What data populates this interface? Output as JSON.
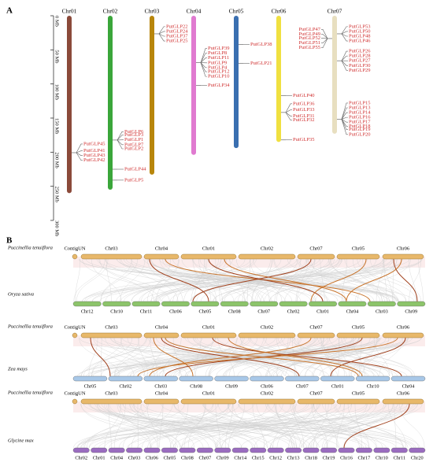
{
  "panel_a": {
    "label": "A",
    "axis_ticks": [
      {
        "value": 0,
        "label": "0 Mb"
      },
      {
        "value": 50,
        "label": "50 Mb"
      },
      {
        "value": 100,
        "label": "100 Mb"
      },
      {
        "value": 150,
        "label": "150 Mb"
      },
      {
        "value": 200,
        "label": "200 Mb"
      },
      {
        "value": 250,
        "label": "250 Mb"
      },
      {
        "value": 300,
        "label": "300 Mb"
      }
    ],
    "axis_range": [
      0,
      300
    ],
    "chromosomes": [
      {
        "name": "Chr01",
        "length": 260,
        "color": "#8b4a3a",
        "genes": [
          {
            "name": "PutGLP45",
            "pos": 188
          },
          {
            "name": "PutGLP41",
            "pos": 198
          },
          {
            "name": "PutGLP43",
            "pos": 205
          },
          {
            "name": "PutGLP42",
            "pos": 212
          }
        ]
      },
      {
        "name": "Chr02",
        "length": 255,
        "color": "#3aa63a",
        "genes": [
          {
            "name": "PutGLP6",
            "pos": 170
          },
          {
            "name": "PutGLP3",
            "pos": 175
          },
          {
            "name": "PutGLP1",
            "pos": 182
          },
          {
            "name": "PutGLP7",
            "pos": 189
          },
          {
            "name": "PutGLP2",
            "pos": 195
          },
          {
            "name": "PutGLP44",
            "pos": 225
          },
          {
            "name": "PutGLP5",
            "pos": 241
          }
        ]
      },
      {
        "name": "Chr03",
        "length": 233,
        "color": "#b8860b",
        "genes": [
          {
            "name": "PutGLP22",
            "pos": 16
          },
          {
            "name": "PutGLP24",
            "pos": 23
          },
          {
            "name": "PutGLP37",
            "pos": 30
          },
          {
            "name": "PutGLP25",
            "pos": 37
          }
        ]
      },
      {
        "name": "Chr04",
        "length": 204,
        "color": "#e07ad0",
        "genes": [
          {
            "name": "PutGLP39",
            "pos": 48
          },
          {
            "name": "PutGLP8",
            "pos": 55
          },
          {
            "name": "PutGLP11",
            "pos": 62
          },
          {
            "name": "PutGLP9",
            "pos": 69
          },
          {
            "name": "PutGLP4",
            "pos": 76
          },
          {
            "name": "PutGLP12",
            "pos": 82
          },
          {
            "name": "PutGLP10",
            "pos": 89
          },
          {
            "name": "PutGLP34",
            "pos": 102
          }
        ]
      },
      {
        "name": "Chr05",
        "length": 194,
        "color": "#3a6fb0",
        "genes": [
          {
            "name": "PutGLP38",
            "pos": 42
          },
          {
            "name": "PutGLP21",
            "pos": 70
          }
        ]
      },
      {
        "name": "Chr06",
        "length": 185,
        "color": "#f0e040",
        "genes": [
          {
            "name": "PutGLP40",
            "pos": 117
          },
          {
            "name": "PutGLP36",
            "pos": 129
          },
          {
            "name": "PutGLP33",
            "pos": 138
          },
          {
            "name": "PutGLP31",
            "pos": 147
          },
          {
            "name": "PutGLP32",
            "pos": 153
          },
          {
            "name": "PutGLP35",
            "pos": 182
          }
        ]
      },
      {
        "name": "Chr07",
        "length": 173,
        "color": "#e8dfc0",
        "genes": [
          {
            "name": "PutGLP47",
            "pos": 20,
            "side": "left"
          },
          {
            "name": "PutGLP49",
            "pos": 27,
            "side": "left"
          },
          {
            "name": "PutGLP52",
            "pos": 33,
            "side": "left"
          },
          {
            "name": "PutGLP51",
            "pos": 40,
            "side": "left"
          },
          {
            "name": "PutGLP55",
            "pos": 47,
            "side": "left"
          },
          {
            "name": "PutGLP53",
            "pos": 16
          },
          {
            "name": "PutGLP50",
            "pos": 23
          },
          {
            "name": "PutGLP48",
            "pos": 30
          },
          {
            "name": "PutGLP46",
            "pos": 37
          },
          {
            "name": "PutGLP26",
            "pos": 52
          },
          {
            "name": "PutGLP28",
            "pos": 59
          },
          {
            "name": "PutGLP27",
            "pos": 66
          },
          {
            "name": "PutGLP30",
            "pos": 73
          },
          {
            "name": "PutGLP29",
            "pos": 80
          },
          {
            "name": "PutGLP15",
            "pos": 128
          },
          {
            "name": "PutGLP13",
            "pos": 135
          },
          {
            "name": "PutGLP14",
            "pos": 142
          },
          {
            "name": "PutGLP16",
            "pos": 149
          },
          {
            "name": "PutGLP17",
            "pos": 156
          },
          {
            "name": "PutGLP18",
            "pos": 162
          },
          {
            "name": "PutGLP19",
            "pos": 167
          },
          {
            "name": "PutGLP20",
            "pos": 174
          }
        ]
      }
    ]
  },
  "panel_b": {
    "label": "B",
    "blocks": [
      {
        "top_species": "Puccinellia tenuiflora",
        "top_color": "#e8b86a",
        "top_chromosomes": [
          "ContigUN",
          "Chr03",
          "Chr04",
          "Chr01",
          "Chr02",
          "Chr07",
          "Chr05",
          "Chr06"
        ],
        "bottom_species": "Oryza sativa",
        "bottom_color": "#8cc46a",
        "bottom_chromosomes": [
          "Chr12",
          "Chr10",
          "Chr11",
          "Chr06",
          "Chr05",
          "Chr08",
          "Chr07",
          "Chr02",
          "Chr01",
          "Chr04",
          "Chr03",
          "Chr09"
        ]
      },
      {
        "top_species": "Puccinellia tenuiflora",
        "top_color": "#e8b86a",
        "top_chromosomes": [
          "ContigUN",
          "Chr03",
          "Chr04",
          "Chr01",
          "Chr02",
          "Chr07",
          "Chr05",
          "Chr06"
        ],
        "bottom_species": "Zea mays",
        "bottom_color": "#a8c8e8",
        "bottom_chromosomes": [
          "Chr05",
          "Chr02",
          "Chr03",
          "Chr08",
          "Chr09",
          "Chr06",
          "Chr07",
          "Chr01",
          "Chr10",
          "Chr04"
        ]
      },
      {
        "top_species": "Puccinellia tenuiflora",
        "top_color": "#e8b86a",
        "top_chromosomes": [
          "ContigUN",
          "Chr03",
          "Chr04",
          "Chr01",
          "Chr02",
          "Chr07",
          "Chr05",
          "Chr06"
        ],
        "bottom_species": "Glycine max",
        "bottom_color": "#9a6cc0",
        "bottom_chromosomes": [
          "Chr02",
          "Chr01",
          "Chr04",
          "Chr03",
          "Chr06",
          "Chr05",
          "Chr08",
          "Chr07",
          "Chr09",
          "Chr14",
          "Chr15",
          "Chr12",
          "Chr13",
          "Chr18",
          "Chr19",
          "Chr16",
          "Chr17",
          "Chr10",
          "Chr11",
          "Chr20"
        ]
      }
    ]
  }
}
